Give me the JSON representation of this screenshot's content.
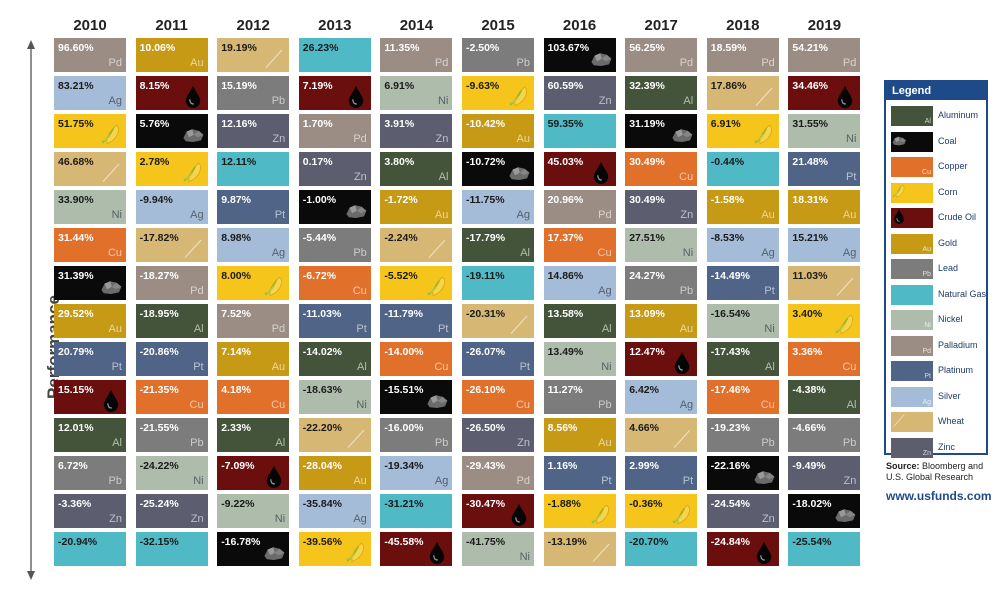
{
  "chart_data": {
    "type": "table",
    "ylabel": "Performance",
    "years": [
      "2010",
      "2011",
      "2012",
      "2013",
      "2014",
      "2015",
      "2016",
      "2017",
      "2018",
      "2019"
    ],
    "columns": [
      {
        "year": "2010",
        "cells": [
          {
            "commodity": "Palladium",
            "symbol": "Pd",
            "value": "96.60%"
          },
          {
            "commodity": "Silver",
            "symbol": "Ag",
            "value": "83.21%"
          },
          {
            "commodity": "Corn",
            "symbol": "",
            "value": "51.75%"
          },
          {
            "commodity": "Wheat",
            "symbol": "",
            "value": "46.68%"
          },
          {
            "commodity": "Nickel",
            "symbol": "Ni",
            "value": "33.90%"
          },
          {
            "commodity": "Copper",
            "symbol": "Cu",
            "value": "31.44%"
          },
          {
            "commodity": "Coal",
            "symbol": "",
            "value": "31.39%"
          },
          {
            "commodity": "Gold",
            "symbol": "Au",
            "value": "29.52%"
          },
          {
            "commodity": "Platinum",
            "symbol": "Pt",
            "value": "20.79%"
          },
          {
            "commodity": "Crude Oil",
            "symbol": "",
            "value": "15.15%"
          },
          {
            "commodity": "Aluminum",
            "symbol": "Al",
            "value": "12.01%"
          },
          {
            "commodity": "Lead",
            "symbol": "Pb",
            "value": "6.72%"
          },
          {
            "commodity": "Zinc",
            "symbol": "Zn",
            "value": "-3.36%"
          },
          {
            "commodity": "Natural Gas",
            "symbol": "",
            "value": "-20.94%"
          }
        ]
      },
      {
        "year": "2011",
        "cells": [
          {
            "commodity": "Gold",
            "symbol": "Au",
            "value": "10.06%"
          },
          {
            "commodity": "Crude Oil",
            "symbol": "",
            "value": "8.15%"
          },
          {
            "commodity": "Coal",
            "symbol": "",
            "value": "5.76%"
          },
          {
            "commodity": "Corn",
            "symbol": "",
            "value": "2.78%"
          },
          {
            "commodity": "Silver",
            "symbol": "Ag",
            "value": "-9.94%"
          },
          {
            "commodity": "Wheat",
            "symbol": "",
            "value": "-17.82%"
          },
          {
            "commodity": "Palladium",
            "symbol": "Pd",
            "value": "-18.27%"
          },
          {
            "commodity": "Aluminum",
            "symbol": "Al",
            "value": "-18.95%"
          },
          {
            "commodity": "Platinum",
            "symbol": "Pt",
            "value": "-20.86%"
          },
          {
            "commodity": "Copper",
            "symbol": "Cu",
            "value": "-21.35%"
          },
          {
            "commodity": "Lead",
            "symbol": "Pb",
            "value": "-21.55%"
          },
          {
            "commodity": "Nickel",
            "symbol": "Ni",
            "value": "-24.22%"
          },
          {
            "commodity": "Zinc",
            "symbol": "Zn",
            "value": "-25.24%"
          },
          {
            "commodity": "Natural Gas",
            "symbol": "",
            "value": "-32.15%"
          }
        ]
      },
      {
        "year": "2012",
        "cells": [
          {
            "commodity": "Wheat",
            "symbol": "",
            "value": "19.19%"
          },
          {
            "commodity": "Lead",
            "symbol": "Pb",
            "value": "15.19%"
          },
          {
            "commodity": "Zinc",
            "symbol": "Zn",
            "value": "12.16%"
          },
          {
            "commodity": "Natural Gas",
            "symbol": "",
            "value": "12.11%"
          },
          {
            "commodity": "Platinum",
            "symbol": "Pt",
            "value": "9.87%"
          },
          {
            "commodity": "Silver",
            "symbol": "Ag",
            "value": "8.98%"
          },
          {
            "commodity": "Corn",
            "symbol": "",
            "value": "8.00%"
          },
          {
            "commodity": "Palladium",
            "symbol": "Pd",
            "value": "7.52%"
          },
          {
            "commodity": "Gold",
            "symbol": "Au",
            "value": "7.14%"
          },
          {
            "commodity": "Copper",
            "symbol": "Cu",
            "value": "4.18%"
          },
          {
            "commodity": "Aluminum",
            "symbol": "Al",
            "value": "2.33%"
          },
          {
            "commodity": "Crude Oil",
            "symbol": "",
            "value": "-7.09%"
          },
          {
            "commodity": "Nickel",
            "symbol": "Ni",
            "value": "-9.22%"
          },
          {
            "commodity": "Coal",
            "symbol": "",
            "value": "-16.78%"
          }
        ]
      },
      {
        "year": "2013",
        "cells": [
          {
            "commodity": "Natural Gas",
            "symbol": "",
            "value": "26.23%"
          },
          {
            "commodity": "Crude Oil",
            "symbol": "",
            "value": "7.19%"
          },
          {
            "commodity": "Palladium",
            "symbol": "Pd",
            "value": "1.70%"
          },
          {
            "commodity": "Zinc",
            "symbol": "Zn",
            "value": "0.17%"
          },
          {
            "commodity": "Coal",
            "symbol": "",
            "value": "-1.00%"
          },
          {
            "commodity": "Lead",
            "symbol": "Pb",
            "value": "-5.44%"
          },
          {
            "commodity": "Copper",
            "symbol": "Cu",
            "value": "-6.72%"
          },
          {
            "commodity": "Platinum",
            "symbol": "Pt",
            "value": "-11.03%"
          },
          {
            "commodity": "Aluminum",
            "symbol": "Al",
            "value": "-14.02%"
          },
          {
            "commodity": "Nickel",
            "symbol": "Ni",
            "value": "-18.63%"
          },
          {
            "commodity": "Wheat",
            "symbol": "",
            "value": "-22.20%"
          },
          {
            "commodity": "Gold",
            "symbol": "Au",
            "value": "-28.04%"
          },
          {
            "commodity": "Silver",
            "symbol": "Ag",
            "value": "-35.84%"
          },
          {
            "commodity": "Corn",
            "symbol": "",
            "value": "-39.56%"
          }
        ]
      },
      {
        "year": "2014",
        "cells": [
          {
            "commodity": "Palladium",
            "symbol": "Pd",
            "value": "11.35%"
          },
          {
            "commodity": "Nickel",
            "symbol": "Ni",
            "value": "6.91%"
          },
          {
            "commodity": "Zinc",
            "symbol": "Zn",
            "value": "3.91%"
          },
          {
            "commodity": "Aluminum",
            "symbol": "Al",
            "value": "3.80%"
          },
          {
            "commodity": "Gold",
            "symbol": "Au",
            "value": "-1.72%"
          },
          {
            "commodity": "Wheat",
            "symbol": "",
            "value": "-2.24%"
          },
          {
            "commodity": "Corn",
            "symbol": "",
            "value": "-5.52%"
          },
          {
            "commodity": "Platinum",
            "symbol": "Pt",
            "value": "-11.79%"
          },
          {
            "commodity": "Copper",
            "symbol": "Cu",
            "value": "-14.00%"
          },
          {
            "commodity": "Coal",
            "symbol": "",
            "value": "-15.51%"
          },
          {
            "commodity": "Lead",
            "symbol": "Pb",
            "value": "-16.00%"
          },
          {
            "commodity": "Silver",
            "symbol": "Ag",
            "value": "-19.34%"
          },
          {
            "commodity": "Natural Gas",
            "symbol": "",
            "value": "-31.21%"
          },
          {
            "commodity": "Crude Oil",
            "symbol": "",
            "value": "-45.58%"
          }
        ]
      },
      {
        "year": "2015",
        "cells": [
          {
            "commodity": "Lead",
            "symbol": "Pb",
            "value": "-2.50%"
          },
          {
            "commodity": "Corn",
            "symbol": "",
            "value": "-9.63%"
          },
          {
            "commodity": "Gold",
            "symbol": "Au",
            "value": "-10.42%"
          },
          {
            "commodity": "Coal",
            "symbol": "",
            "value": "-10.72%"
          },
          {
            "commodity": "Silver",
            "symbol": "Ag",
            "value": "-11.75%"
          },
          {
            "commodity": "Aluminum",
            "symbol": "Al",
            "value": "-17.79%"
          },
          {
            "commodity": "Natural Gas",
            "symbol": "",
            "value": "-19.11%"
          },
          {
            "commodity": "Wheat",
            "symbol": "",
            "value": "-20.31%"
          },
          {
            "commodity": "Platinum",
            "symbol": "Pt",
            "value": "-26.07%"
          },
          {
            "commodity": "Copper",
            "symbol": "Cu",
            "value": "-26.10%"
          },
          {
            "commodity": "Zinc",
            "symbol": "Zn",
            "value": "-26.50%"
          },
          {
            "commodity": "Palladium",
            "symbol": "Pd",
            "value": "-29.43%"
          },
          {
            "commodity": "Crude Oil",
            "symbol": "",
            "value": "-30.47%"
          },
          {
            "commodity": "Nickel",
            "symbol": "Ni",
            "value": "-41.75%"
          }
        ]
      },
      {
        "year": "2016",
        "cells": [
          {
            "commodity": "Coal",
            "symbol": "",
            "value": "103.67%"
          },
          {
            "commodity": "Zinc",
            "symbol": "Zn",
            "value": "60.59%"
          },
          {
            "commodity": "Natural Gas",
            "symbol": "",
            "value": "59.35%"
          },
          {
            "commodity": "Crude Oil",
            "symbol": "",
            "value": "45.03%"
          },
          {
            "commodity": "Palladium",
            "symbol": "Pd",
            "value": "20.96%"
          },
          {
            "commodity": "Copper",
            "symbol": "Cu",
            "value": "17.37%"
          },
          {
            "commodity": "Silver",
            "symbol": "Ag",
            "value": "14.86%"
          },
          {
            "commodity": "Aluminum",
            "symbol": "Al",
            "value": "13.58%"
          },
          {
            "commodity": "Nickel",
            "symbol": "Ni",
            "value": "13.49%"
          },
          {
            "commodity": "Lead",
            "symbol": "Pb",
            "value": "11.27%"
          },
          {
            "commodity": "Gold",
            "symbol": "Au",
            "value": "8.56%"
          },
          {
            "commodity": "Platinum",
            "symbol": "Pt",
            "value": "1.16%"
          },
          {
            "commodity": "Corn",
            "symbol": "",
            "value": "-1.88%"
          },
          {
            "commodity": "Wheat",
            "symbol": "",
            "value": "-13.19%"
          }
        ]
      },
      {
        "year": "2017",
        "cells": [
          {
            "commodity": "Palladium",
            "symbol": "Pd",
            "value": "56.25%"
          },
          {
            "commodity": "Aluminum",
            "symbol": "Al",
            "value": "32.39%"
          },
          {
            "commodity": "Coal",
            "symbol": "",
            "value": "31.19%"
          },
          {
            "commodity": "Copper",
            "symbol": "Cu",
            "value": "30.49%"
          },
          {
            "commodity": "Zinc",
            "symbol": "Zn",
            "value": "30.49%"
          },
          {
            "commodity": "Nickel",
            "symbol": "Ni",
            "value": "27.51%"
          },
          {
            "commodity": "Lead",
            "symbol": "Pb",
            "value": "24.27%"
          },
          {
            "commodity": "Gold",
            "symbol": "Au",
            "value": "13.09%"
          },
          {
            "commodity": "Crude Oil",
            "symbol": "",
            "value": "12.47%"
          },
          {
            "commodity": "Silver",
            "symbol": "Ag",
            "value": "6.42%"
          },
          {
            "commodity": "Wheat",
            "symbol": "",
            "value": "4.66%"
          },
          {
            "commodity": "Platinum",
            "symbol": "Pt",
            "value": "2.99%"
          },
          {
            "commodity": "Corn",
            "symbol": "",
            "value": "-0.36%"
          },
          {
            "commodity": "Natural Gas",
            "symbol": "",
            "value": "-20.70%"
          }
        ]
      },
      {
        "year": "2018",
        "cells": [
          {
            "commodity": "Palladium",
            "symbol": "Pd",
            "value": "18.59%"
          },
          {
            "commodity": "Wheat",
            "symbol": "",
            "value": "17.86%"
          },
          {
            "commodity": "Corn",
            "symbol": "",
            "value": "6.91%"
          },
          {
            "commodity": "Natural Gas",
            "symbol": "",
            "value": "-0.44%"
          },
          {
            "commodity": "Gold",
            "symbol": "Au",
            "value": "-1.58%"
          },
          {
            "commodity": "Silver",
            "symbol": "Ag",
            "value": "-8.53%"
          },
          {
            "commodity": "Platinum",
            "symbol": "Pt",
            "value": "-14.49%"
          },
          {
            "commodity": "Nickel",
            "symbol": "Ni",
            "value": "-16.54%"
          },
          {
            "commodity": "Aluminum",
            "symbol": "Al",
            "value": "-17.43%"
          },
          {
            "commodity": "Copper",
            "symbol": "Cu",
            "value": "-17.46%"
          },
          {
            "commodity": "Lead",
            "symbol": "Pb",
            "value": "-19.23%"
          },
          {
            "commodity": "Coal",
            "symbol": "",
            "value": "-22.16%"
          },
          {
            "commodity": "Zinc",
            "symbol": "Zn",
            "value": "-24.54%"
          },
          {
            "commodity": "Crude Oil",
            "symbol": "",
            "value": "-24.84%"
          }
        ]
      },
      {
        "year": "2019",
        "cells": [
          {
            "commodity": "Palladium",
            "symbol": "Pd",
            "value": "54.21%"
          },
          {
            "commodity": "Crude Oil",
            "symbol": "",
            "value": "34.46%"
          },
          {
            "commodity": "Nickel",
            "symbol": "Ni",
            "value": "31.55%"
          },
          {
            "commodity": "Platinum",
            "symbol": "Pt",
            "value": "21.48%"
          },
          {
            "commodity": "Gold",
            "symbol": "Au",
            "value": "18.31%"
          },
          {
            "commodity": "Silver",
            "symbol": "Ag",
            "value": "15.21%"
          },
          {
            "commodity": "Wheat",
            "symbol": "",
            "value": "11.03%"
          },
          {
            "commodity": "Corn",
            "symbol": "",
            "value": "3.40%"
          },
          {
            "commodity": "Copper",
            "symbol": "Cu",
            "value": "3.36%"
          },
          {
            "commodity": "Aluminum",
            "symbol": "Al",
            "value": "-4.38%"
          },
          {
            "commodity": "Lead",
            "symbol": "Pb",
            "value": "-4.66%"
          },
          {
            "commodity": "Zinc",
            "symbol": "Zn",
            "value": "-9.49%"
          },
          {
            "commodity": "Coal",
            "symbol": "",
            "value": "-18.02%"
          },
          {
            "commodity": "Natural Gas",
            "symbol": "",
            "value": "-25.54%"
          }
        ]
      }
    ]
  },
  "legend": {
    "title": "Legend",
    "items": [
      {
        "name": "Aluminum",
        "symbol": "Al",
        "color": "#44543a",
        "icon": ""
      },
      {
        "name": "Coal",
        "symbol": "",
        "color": "#0a0a0a",
        "icon": "coal-icon"
      },
      {
        "name": "Copper",
        "symbol": "Cu",
        "color": "#e0702a",
        "icon": ""
      },
      {
        "name": "Corn",
        "symbol": "",
        "color": "#f5c51c",
        "icon": "corn-icon"
      },
      {
        "name": "Crude Oil",
        "symbol": "",
        "color": "#6a0e0e",
        "icon": "oil-drop-icon"
      },
      {
        "name": "Gold",
        "symbol": "Au",
        "color": "#c69a14",
        "icon": ""
      },
      {
        "name": "Lead",
        "symbol": "Pb",
        "color": "#7c7c7c",
        "icon": ""
      },
      {
        "name": "Natural Gas",
        "symbol": "",
        "color": "#4fb9c6",
        "icon": ""
      },
      {
        "name": "Nickel",
        "symbol": "Ni",
        "color": "#aebdab",
        "icon": ""
      },
      {
        "name": "Palladium",
        "symbol": "Pd",
        "color": "#9c8d84",
        "icon": ""
      },
      {
        "name": "Platinum",
        "symbol": "Pt",
        "color": "#4f6487",
        "icon": ""
      },
      {
        "name": "Silver",
        "symbol": "Ag",
        "color": "#a5bcd8",
        "icon": ""
      },
      {
        "name": "Wheat",
        "symbol": "",
        "color": "#d7b774",
        "icon": "wheat-icon"
      },
      {
        "name": "Zinc",
        "symbol": "Zn",
        "color": "#5c5e70",
        "icon": ""
      }
    ]
  },
  "source": {
    "label": "Source:",
    "text": "Bloomberg and U.S. Global Research"
  },
  "url": "www.usfunds.com"
}
